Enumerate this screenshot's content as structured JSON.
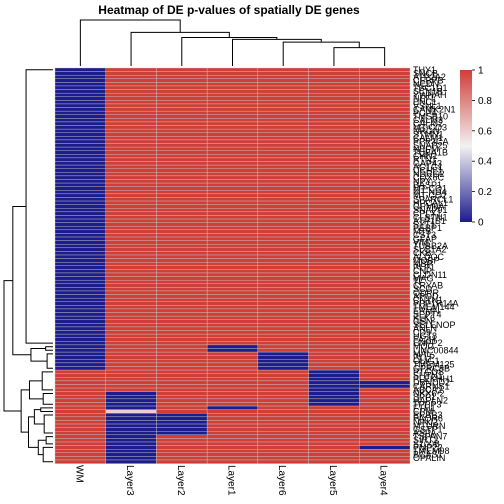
{
  "chart_data": {
    "type": "heatmap",
    "title": "Heatmap of DE p-values of spatially DE genes",
    "columns": [
      "WM",
      "Layer3",
      "Layer2",
      "Layer1",
      "Layer6",
      "Layer5",
      "Layer4"
    ],
    "rows": [
      "THY1",
      "SNCB",
      "ATP2A2",
      "CEBPB",
      "NCDN",
      "TBC1D1",
      "SCN1B",
      "YWHAH",
      "NEFL",
      "ENC1",
      "VSNL1",
      "CAMK2N1",
      "PCP4",
      "TMSB10",
      "CALM3",
      "CALM2",
      "MT-CO3",
      "NRGN",
      "STMN1",
      "CALM1",
      "PPP3CA",
      "SNAP25",
      "NEFM",
      "TUBA1B",
      "CHN1",
      "RTN1",
      "GAP43",
      "ACTG1",
      "UCHL1",
      "NDRG2",
      "COX6C",
      "NPY",
      "BASP1",
      "MT-CO1",
      "MT-ND4",
      "MT-CO2",
      "SPARCL1",
      "HPCAL1",
      "GPM6A",
      "SNAP91",
      "CPLX1",
      "CLSTN1",
      "ATP1B1",
      "SYT1",
      "PEBP1",
      "MT3",
      "CST3",
      "GFAP",
      "VIM",
      "TUBB2A",
      "SLC1A2",
      "CKB",
      "ALDOC",
      "MOBP",
      "MBP",
      "PLP1",
      "CNP",
      "CLDN11",
      "MAG",
      "TF",
      "CRYAB",
      "SCD",
      "QDPR",
      "APOD",
      "CNTN1",
      "PPP1R14A",
      "TMEM144",
      "ERMN",
      "SEPT4",
      "KLK6",
      "GSN",
      "SELENOP",
      "ANLN",
      "CD9",
      "UGT8",
      "FA2H",
      "ENPP2",
      "MOG",
      "LINC00844",
      "MAL",
      "PLLP",
      "OLIG1",
      "TMEM125",
      "GPRC5B",
      "PTGDS",
      "SHTN1",
      "PLEKHH1",
      "DBNDD2",
      "CARNS1",
      "ABCA2",
      "NKX6-2",
      "SPP1",
      "HAPLN2",
      "TPPP3",
      "FTH1",
      "CPM",
      "ERBB3",
      "PAQR6",
      "NINJ2",
      "MTURN",
      "GSTP1",
      "ASPA",
      "TSPAN7",
      "SIRT2",
      "S100B",
      "PMP22",
      "TMEM98",
      "BCAS1",
      "OPALIN"
    ],
    "cells": [
      [
        0,
        1,
        1,
        1,
        1,
        1,
        1
      ],
      [
        0,
        1,
        1,
        1,
        1,
        1,
        1
      ],
      [
        0,
        1,
        1,
        1,
        1,
        1,
        1
      ],
      [
        0,
        1,
        1,
        1,
        1,
        1,
        1
      ],
      [
        0,
        1,
        1,
        1,
        1,
        1,
        1
      ],
      [
        0,
        1,
        1,
        1,
        1,
        1,
        1
      ],
      [
        0,
        1,
        1,
        1,
        1,
        1,
        1
      ],
      [
        0,
        1,
        1,
        1,
        1,
        1,
        1
      ],
      [
        0,
        1,
        1,
        1,
        1,
        1,
        1
      ],
      [
        0,
        1,
        1,
        1,
        1,
        1,
        1
      ],
      [
        0,
        1,
        1,
        1,
        1,
        1,
        1
      ],
      [
        0,
        1,
        1,
        1,
        1,
        1,
        1
      ],
      [
        0,
        1,
        1,
        1,
        1,
        1,
        1
      ],
      [
        0,
        1,
        1,
        1,
        1,
        1,
        1
      ],
      [
        0,
        1,
        1,
        1,
        1,
        1,
        1
      ],
      [
        0,
        1,
        1,
        1,
        1,
        1,
        1
      ],
      [
        0,
        1,
        1,
        1,
        1,
        1,
        1
      ],
      [
        0,
        1,
        1,
        1,
        1,
        1,
        1
      ],
      [
        0,
        1,
        1,
        1,
        1,
        1,
        1
      ],
      [
        0,
        1,
        1,
        1,
        1,
        1,
        1
      ],
      [
        0,
        1,
        1,
        1,
        1,
        1,
        1
      ],
      [
        0,
        1,
        1,
        1,
        1,
        1,
        1
      ],
      [
        0,
        1,
        1,
        1,
        1,
        1,
        1
      ],
      [
        0,
        1,
        1,
        1,
        1,
        1,
        1
      ],
      [
        0,
        1,
        1,
        1,
        1,
        1,
        1
      ],
      [
        0,
        1,
        1,
        1,
        1,
        1,
        1
      ],
      [
        0,
        1,
        1,
        1,
        1,
        1,
        1
      ],
      [
        0,
        1,
        1,
        1,
        1,
        1,
        1
      ],
      [
        0,
        1,
        1,
        1,
        1,
        1,
        1
      ],
      [
        0,
        1,
        1,
        1,
        1,
        1,
        1
      ],
      [
        0,
        1,
        1,
        1,
        1,
        1,
        1
      ],
      [
        0,
        1,
        1,
        1,
        1,
        1,
        1
      ],
      [
        0,
        1,
        1,
        1,
        1,
        1,
        1
      ],
      [
        0,
        1,
        1,
        1,
        1,
        1,
        1
      ],
      [
        0,
        1,
        1,
        1,
        1,
        1,
        1
      ],
      [
        0,
        1,
        1,
        1,
        1,
        1,
        1
      ],
      [
        0,
        1,
        1,
        1,
        1,
        1,
        1
      ],
      [
        0,
        1,
        1,
        1,
        1,
        1,
        1
      ],
      [
        0,
        1,
        1,
        1,
        1,
        1,
        1
      ],
      [
        0,
        1,
        1,
        1,
        1,
        1,
        1
      ],
      [
        0,
        1,
        1,
        1,
        1,
        1,
        1
      ],
      [
        0,
        1,
        1,
        1,
        1,
        1,
        1
      ],
      [
        0,
        1,
        1,
        1,
        1,
        1,
        1
      ],
      [
        0,
        1,
        1,
        1,
        1,
        1,
        1
      ],
      [
        0,
        1,
        1,
        1,
        1,
        1,
        1
      ],
      [
        0,
        1,
        1,
        1,
        1,
        1,
        1
      ],
      [
        0,
        1,
        1,
        1,
        1,
        1,
        1
      ],
      [
        0,
        1,
        1,
        1,
        1,
        1,
        1
      ],
      [
        0,
        1,
        1,
        1,
        1,
        1,
        1
      ],
      [
        0,
        1,
        1,
        1,
        1,
        1,
        1
      ],
      [
        0,
        1,
        1,
        1,
        1,
        1,
        1
      ],
      [
        0,
        1,
        1,
        1,
        1,
        1,
        1
      ],
      [
        0,
        1,
        1,
        1,
        1,
        1,
        1
      ],
      [
        0,
        1,
        1,
        1,
        1,
        1,
        1
      ],
      [
        0,
        1,
        1,
        1,
        1,
        1,
        1
      ],
      [
        0,
        1,
        1,
        1,
        1,
        1,
        1
      ],
      [
        0,
        1,
        1,
        1,
        1,
        1,
        1
      ],
      [
        0,
        1,
        1,
        1,
        1,
        1,
        1
      ],
      [
        0,
        1,
        1,
        1,
        1,
        1,
        1
      ],
      [
        0,
        1,
        1,
        1,
        1,
        1,
        1
      ],
      [
        0,
        1,
        1,
        1,
        1,
        1,
        1
      ],
      [
        0,
        1,
        1,
        1,
        1,
        1,
        1
      ],
      [
        0,
        1,
        1,
        1,
        1,
        1,
        1
      ],
      [
        0,
        1,
        1,
        1,
        1,
        1,
        1
      ],
      [
        0,
        1,
        1,
        1,
        1,
        1,
        1
      ],
      [
        0,
        1,
        1,
        1,
        1,
        1,
        1
      ],
      [
        0,
        1,
        1,
        1,
        1,
        1,
        1
      ],
      [
        0,
        1,
        1,
        1,
        1,
        1,
        1
      ],
      [
        0,
        1,
        1,
        1,
        1,
        1,
        1
      ],
      [
        0,
        1,
        1,
        1,
        1,
        1,
        1
      ],
      [
        0,
        1,
        1,
        1,
        1,
        1,
        1
      ],
      [
        0,
        1,
        1,
        1,
        1,
        1,
        1
      ],
      [
        0,
        1,
        1,
        1,
        1,
        1,
        1
      ],
      [
        0,
        1,
        1,
        1,
        1,
        1,
        1
      ],
      [
        0,
        1,
        1,
        1,
        1,
        1,
        1
      ],
      [
        0,
        1,
        1,
        1,
        1,
        1,
        1
      ],
      [
        0,
        1,
        1,
        1,
        1,
        1,
        1
      ],
      [
        0,
        1,
        1,
        0,
        1,
        1,
        1
      ],
      [
        0,
        1,
        1,
        0,
        1,
        1,
        1
      ],
      [
        0,
        1,
        1,
        1,
        0,
        1,
        1
      ],
      [
        0,
        1,
        1,
        1,
        0,
        1,
        1
      ],
      [
        0,
        1,
        1,
        1,
        0,
        1,
        1
      ],
      [
        0,
        1,
        1,
        1,
        0,
        1,
        1
      ],
      [
        0,
        1,
        1,
        1,
        0,
        1,
        1
      ],
      [
        1,
        1,
        1,
        1,
        1,
        0,
        1
      ],
      [
        1,
        1,
        1,
        1,
        1,
        0,
        1
      ],
      [
        1,
        1,
        1,
        1,
        1,
        0,
        1
      ],
      [
        1,
        1,
        1,
        1,
        1,
        0,
        0
      ],
      [
        1,
        1,
        1,
        1,
        1,
        0,
        0
      ],
      [
        1,
        1,
        1,
        1,
        1,
        0,
        1
      ],
      [
        1,
        0,
        1,
        1,
        1,
        0,
        1
      ],
      [
        1,
        0,
        1,
        1,
        1,
        0,
        1
      ],
      [
        1,
        0,
        1,
        1,
        1,
        0,
        1
      ],
      [
        1,
        0,
        1,
        1,
        1,
        0,
        1
      ],
      [
        1,
        0,
        1,
        0,
        1,
        1,
        1
      ],
      [
        1,
        0.6,
        1,
        1,
        1,
        1,
        1
      ],
      [
        1,
        0,
        0,
        1,
        1,
        1,
        1
      ],
      [
        1,
        0,
        0,
        1,
        1,
        1,
        1
      ],
      [
        1,
        0,
        0,
        1,
        1,
        1,
        1
      ],
      [
        1,
        0,
        0,
        1,
        1,
        1,
        1
      ],
      [
        1,
        0,
        0,
        1,
        1,
        1,
        1
      ],
      [
        1,
        0,
        0,
        1,
        1,
        1,
        1
      ],
      [
        1,
        0,
        1,
        1,
        1,
        1,
        1
      ],
      [
        1,
        0,
        1,
        1,
        1,
        1,
        1
      ],
      [
        1,
        0,
        1,
        1,
        1,
        1,
        1
      ],
      [
        1,
        0,
        1,
        1,
        1,
        1,
        0
      ],
      [
        1,
        0,
        1,
        1,
        1,
        1,
        1
      ],
      [
        1,
        0,
        1,
        1,
        1,
        1,
        1
      ],
      [
        1,
        0,
        1,
        1,
        1,
        1,
        1
      ],
      [
        1,
        0,
        1,
        1,
        1,
        1,
        1
      ]
    ],
    "legend": {
      "ticks": [
        0,
        0.2,
        0.4,
        0.6,
        0.8,
        1
      ],
      "colors": {
        "low": "#1c1c8c",
        "mid": "#f2f2f2",
        "high": "#cf3e37"
      }
    },
    "dendrogram_columns": true,
    "dendrogram_rows": true
  }
}
